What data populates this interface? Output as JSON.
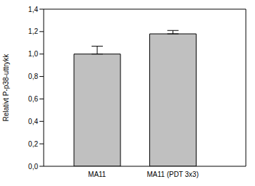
{
  "chart_data": {
    "type": "bar",
    "categories": [
      "MA11",
      "MA11 (PDT 3x3)"
    ],
    "values": [
      1.0,
      1.18
    ],
    "errors": [
      0.07,
      0.03
    ],
    "color": "#c0c0c0",
    "y_label": "Relativt P-p38-uttrykk",
    "ylim": [
      0,
      1.4
    ],
    "yticks": [
      {
        "value": 0,
        "label": "0,0"
      },
      {
        "value": 0.2,
        "label": "0,2"
      },
      {
        "value": 0.4,
        "label": "0,4"
      },
      {
        "value": 0.6,
        "label": "0,6"
      },
      {
        "value": 0.8,
        "label": "0,8"
      },
      {
        "value": 1.0,
        "label": "1,0"
      },
      {
        "value": 1.2,
        "label": "1,2"
      },
      {
        "value": 1.4,
        "label": "1,4"
      }
    ],
    "grid": false
  }
}
